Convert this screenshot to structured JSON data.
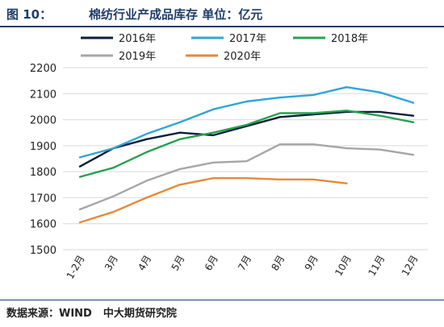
{
  "header": {
    "figure_label": "图 10：",
    "title": "棉纺行业产成品库存 单位：亿元"
  },
  "footer": {
    "source": "数据来源：WIND",
    "org": "中大期货研究院"
  },
  "chart_data": {
    "type": "line",
    "title": "棉纺行业产成品库存 单位：亿元",
    "xlabel": "",
    "ylabel": "",
    "categories": [
      "1-2月",
      "3月",
      "4月",
      "5月",
      "6月",
      "7月",
      "8月",
      "9月",
      "10月",
      "11月",
      "12月"
    ],
    "ylim": [
      1500,
      2200
    ],
    "yticks": [
      1500,
      1600,
      1700,
      1800,
      1900,
      2000,
      2100,
      2200
    ],
    "grid": true,
    "legend_position": "top",
    "series": [
      {
        "name": "2016年",
        "color": "#0b1f3a",
        "values": [
          1820,
          1890,
          1925,
          1950,
          1940,
          1975,
          2010,
          2020,
          2030,
          2030,
          2015
        ]
      },
      {
        "name": "2017年",
        "color": "#2fa6d6",
        "values": [
          1855,
          1890,
          1945,
          1990,
          2040,
          2070,
          2085,
          2095,
          2125,
          2105,
          2065
        ]
      },
      {
        "name": "2018年",
        "color": "#27a050",
        "values": [
          1780,
          1815,
          1875,
          1925,
          1950,
          1980,
          2025,
          2025,
          2035,
          2015,
          1990
        ]
      },
      {
        "name": "2019年",
        "color": "#a6a6a6",
        "values": [
          1655,
          1705,
          1765,
          1810,
          1835,
          1840,
          1905,
          1905,
          1890,
          1885,
          1865
        ]
      },
      {
        "name": "2020年",
        "color": "#e58a3c",
        "values": [
          1605,
          1645,
          1700,
          1750,
          1775,
          1775,
          1770,
          1770,
          1755,
          null,
          null
        ]
      }
    ]
  }
}
